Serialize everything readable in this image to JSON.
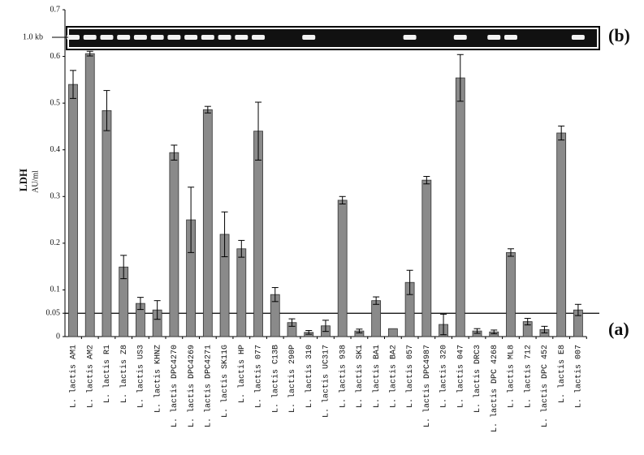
{
  "chart_data": {
    "type": "bar",
    "y_label": "LDH",
    "y_unit": "AU/ml",
    "gel_label": "1.0 kb",
    "annotations": [
      "(a)",
      "(b)"
    ],
    "threshold": 0.05,
    "categories": [
      "L. lactis AM1",
      "L. lactis AM2",
      "L. lactis R1",
      "L. lactis Z8",
      "L. lactis US3",
      "L. lactis KHNZ",
      "L. lactis DPC4270",
      "L. lactis DPC4269",
      "L. lactis DPC4271",
      "L. lactis SK11G",
      "L. lactis HP",
      "L. lactis 077",
      "L. lactis C13B",
      "L. lactis 290P",
      "L. lactis 310",
      "L. lactis UC317",
      "L. lactis 938",
      "L. lactis SK1",
      "L. lactis BA1",
      "L. lactis BA2",
      "L. lactis 057",
      "L. lactis DPC4987",
      "L. lactis 320",
      "L. lactis 047",
      "L. lactis DRC3",
      "L. lactis DPC 4268",
      "L. lactis ML8",
      "L. lactis 712",
      "L. lactis DPC 452",
      "L. lactis E8",
      "L. lactis 007"
    ],
    "values": [
      0.54,
      0.606,
      0.484,
      0.149,
      0.071,
      0.057,
      0.394,
      0.25,
      0.486,
      0.219,
      0.188,
      0.44,
      0.09,
      0.03,
      0.009,
      0.023,
      0.292,
      0.012,
      0.077,
      0.017,
      0.116,
      0.335,
      0.026,
      0.554,
      0.012,
      0.01,
      0.18,
      0.032,
      0.015,
      0.436,
      0.057
    ],
    "errors": [
      0.03,
      0.005,
      0.043,
      0.025,
      0.013,
      0.02,
      0.016,
      0.07,
      0.007,
      0.048,
      0.018,
      0.062,
      0.015,
      0.008,
      0.004,
      0.012,
      0.008,
      0.004,
      0.008,
      0,
      0.026,
      0.008,
      0.022,
      0.05,
      0.005,
      0.004,
      0.008,
      0.007,
      0.007,
      0.015,
      0.012
    ],
    "color": "#8a8a8a",
    "ylim": [
      0,
      0.7
    ],
    "yticks": [
      0,
      0.05,
      0.1,
      0.2,
      0.3,
      0.4,
      0.5,
      0.6,
      0.7
    ]
  }
}
